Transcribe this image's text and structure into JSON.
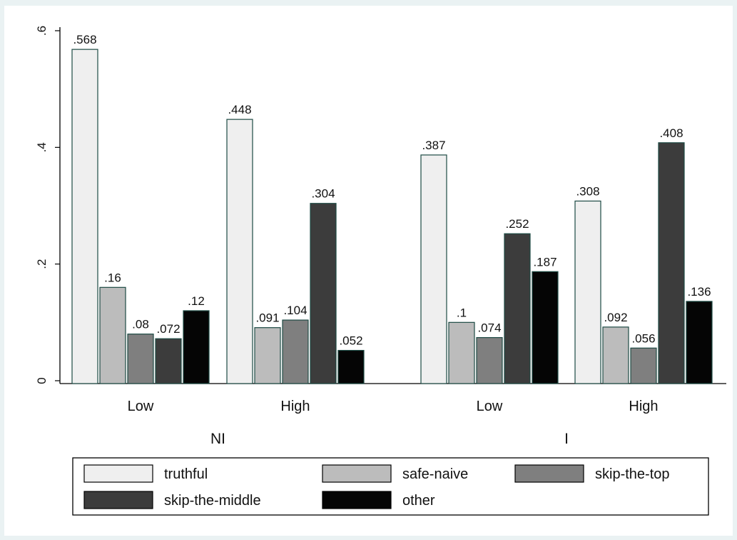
{
  "chart_data": {
    "type": "bar",
    "title": "",
    "xlabel": "",
    "ylabel": "",
    "ylim": [
      0,
      0.6
    ],
    "yticks": [
      {
        "value": 0,
        "label": "0"
      },
      {
        "value": 0.2,
        "label": ".2"
      },
      {
        "value": 0.4,
        "label": ".4"
      },
      {
        "value": 0.6,
        "label": ".6"
      }
    ],
    "grid": false,
    "legend_position": "bottom",
    "groups": [
      {
        "name": "NI",
        "subgroups": [
          "Low",
          "High"
        ]
      },
      {
        "name": "I",
        "subgroups": [
          "Low",
          "High"
        ]
      }
    ],
    "categories": [
      "NI Low",
      "NI High",
      "I Low",
      "I High"
    ],
    "series": [
      {
        "name": "truthful",
        "color": "#efefef",
        "values": [
          0.568,
          0.448,
          0.387,
          0.308
        ],
        "labels": [
          ".568",
          ".448",
          ".387",
          ".308"
        ]
      },
      {
        "name": "safe-naive",
        "color": "#bcbcbc",
        "values": [
          0.16,
          0.091,
          0.1,
          0.092
        ],
        "labels": [
          ".16",
          ".091",
          ".1",
          ".092"
        ]
      },
      {
        "name": "skip-the-top",
        "color": "#7f7f7f",
        "values": [
          0.08,
          0.104,
          0.074,
          0.056
        ],
        "labels": [
          ".08",
          ".104",
          ".074",
          ".056"
        ]
      },
      {
        "name": "skip-the-middle",
        "color": "#3c3c3c",
        "values": [
          0.072,
          0.304,
          0.252,
          0.408
        ],
        "labels": [
          ".072",
          ".304",
          ".252",
          ".408"
        ]
      },
      {
        "name": "other",
        "color": "#050505",
        "values": [
          0.12,
          0.052,
          0.187,
          0.136
        ],
        "labels": [
          ".12",
          ".052",
          ".187",
          ".136"
        ]
      }
    ]
  }
}
